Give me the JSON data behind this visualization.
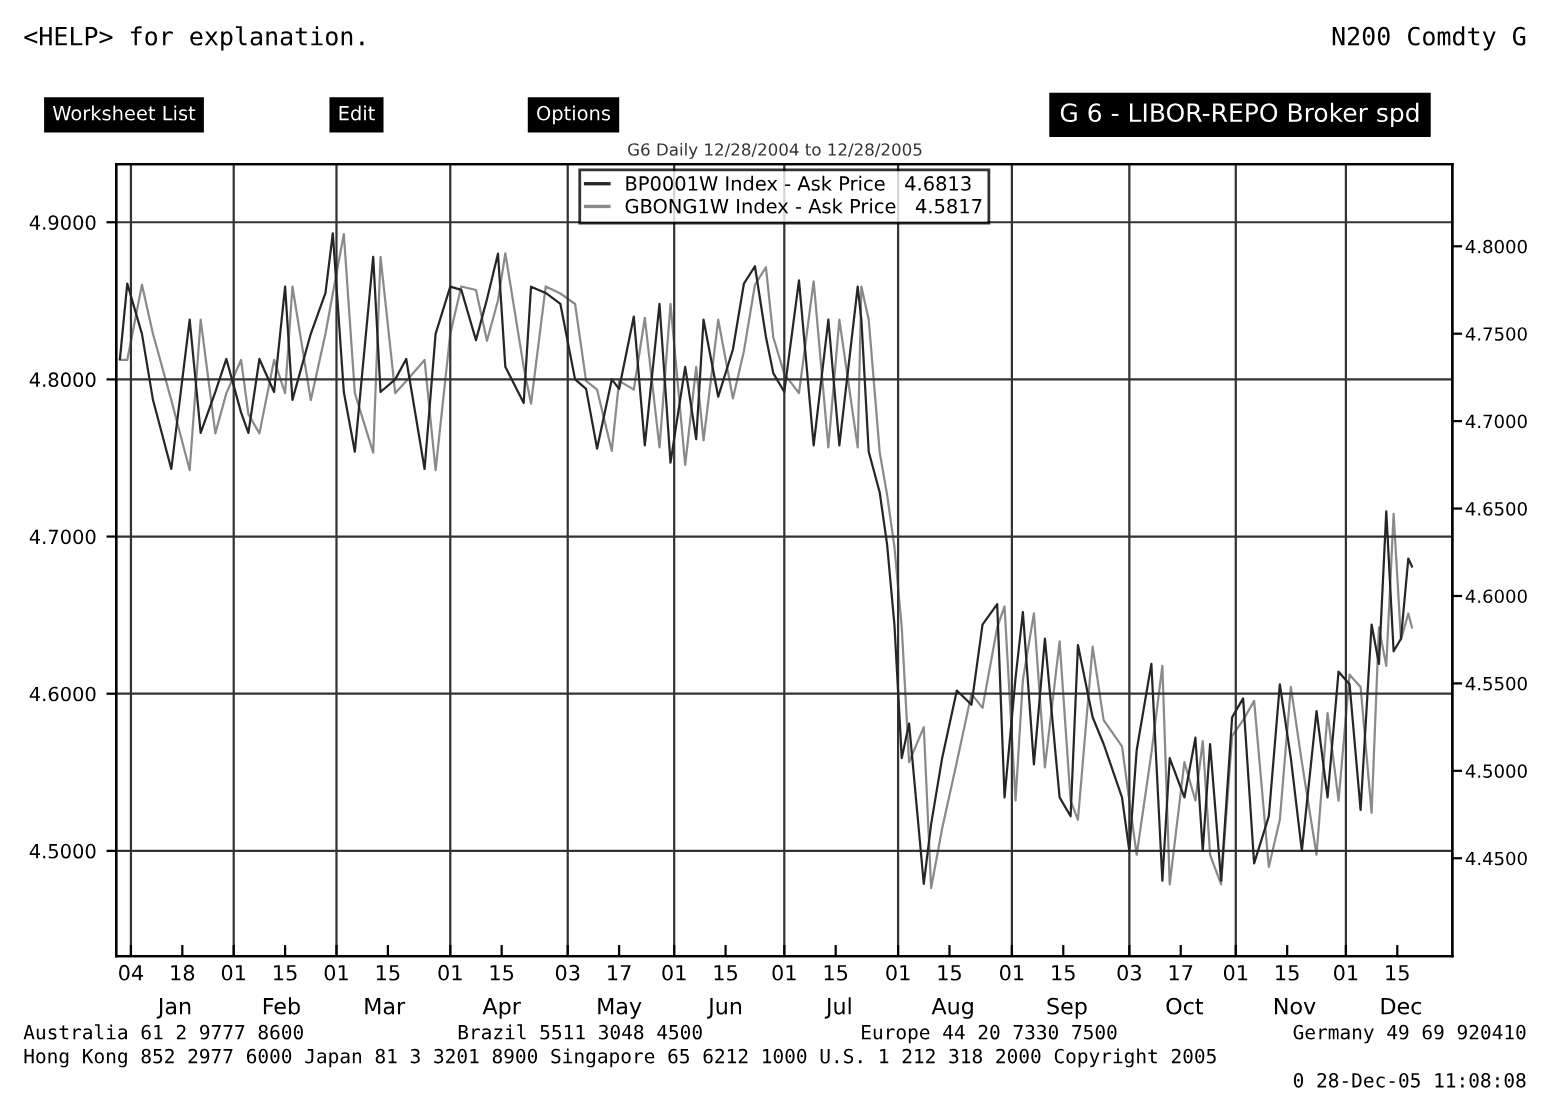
{
  "chart_data": {
    "type": "line",
    "title": "G 6 - LIBOR-REPO Broker spd",
    "subtitle": "G6 Daily 12/28/2004 to 12/28/2005",
    "annotations": [
      "<HELP> for explanation.",
      "N200 Comdty G",
      "Worksheet List",
      "Edit",
      "Options",
      "Australia 61 2 9777 8600",
      "Brazil 5511 3048 4500",
      "Europe 44 20 7330 7500",
      "Germany 49 69 920410",
      "Hong Kong 852 2977 6000 Japan 81 3 3201 8900 Singapore 65 6212 1000 U.S. 1 212 318 2000 Copyright 2005",
      "0 28-Dec-05 11:08:08"
    ],
    "x": [
      "2005-01-01",
      "2005-01-03",
      "2005-01-07",
      "2005-01-10",
      "2005-01-15",
      "2005-01-20",
      "2005-01-23",
      "2005-01-27",
      "2005-01-30",
      "2005-02-03",
      "2005-02-05",
      "2005-02-08",
      "2005-02-12",
      "2005-02-15",
      "2005-02-17",
      "2005-02-22",
      "2005-02-26",
      "2005-02-28",
      "2005-03-03",
      "2005-03-06",
      "2005-03-11",
      "2005-03-13",
      "2005-03-17",
      "2005-03-20",
      "2005-03-25",
      "2005-03-28",
      "2005-04-01",
      "2005-04-04",
      "2005-04-08",
      "2005-04-11",
      "2005-04-14",
      "2005-04-16",
      "2005-04-21",
      "2005-04-23",
      "2005-04-27",
      "2005-05-01",
      "2005-05-05",
      "2005-05-08",
      "2005-05-11",
      "2005-05-15",
      "2005-05-17",
      "2005-05-21",
      "2005-05-24",
      "2005-05-28",
      "2005-05-31",
      "2005-06-04",
      "2005-06-07",
      "2005-06-09",
      "2005-06-13",
      "2005-06-17",
      "2005-06-20",
      "2005-06-23",
      "2005-06-26",
      "2005-06-28",
      "2005-07-01",
      "2005-07-05",
      "2005-07-09",
      "2005-07-13",
      "2005-07-16",
      "2005-07-21",
      "2005-07-22",
      "2005-07-24",
      "2005-07-27",
      "2005-07-29",
      "2005-07-31",
      "2005-08-02",
      "2005-08-04",
      "2005-08-08",
      "2005-08-10",
      "2005-08-13",
      "2005-08-17",
      "2005-08-21",
      "2005-08-24",
      "2005-08-28",
      "2005-08-30",
      "2005-09-02",
      "2005-09-04",
      "2005-09-07",
      "2005-09-10",
      "2005-09-14",
      "2005-09-17",
      "2005-09-19",
      "2005-09-23",
      "2005-09-26",
      "2005-10-01",
      "2005-10-03",
      "2005-10-05",
      "2005-10-09",
      "2005-10-12",
      "2005-10-14",
      "2005-10-18",
      "2005-10-21",
      "2005-10-23",
      "2005-10-25",
      "2005-10-28",
      "2005-10-31",
      "2005-11-03",
      "2005-11-06",
      "2005-11-10",
      "2005-11-13",
      "2005-11-16",
      "2005-11-19",
      "2005-11-23",
      "2005-11-26",
      "2005-11-29",
      "2005-12-02",
      "2005-12-05",
      "2005-12-08",
      "2005-12-10",
      "2005-12-12",
      "2005-12-14",
      "2005-12-16",
      "2005-12-18",
      "2005-12-19"
    ],
    "series": [
      {
        "name": "BP0001W Index - Ask Price   4.6813",
        "color": "#262626",
        "values": [
          4.813,
          4.861,
          4.829,
          4.787,
          4.743,
          4.838,
          4.766,
          4.792,
          4.813,
          4.779,
          4.766,
          4.813,
          4.792,
          4.859,
          4.787,
          4.829,
          4.855,
          4.893,
          4.792,
          4.754,
          4.878,
          4.792,
          4.8,
          4.813,
          4.743,
          4.829,
          4.859,
          4.857,
          4.825,
          4.851,
          4.88,
          4.808,
          4.785,
          4.859,
          4.855,
          4.848,
          4.8,
          4.794,
          4.756,
          4.8,
          4.794,
          4.84,
          4.758,
          4.848,
          4.747,
          4.808,
          4.762,
          4.838,
          4.789,
          4.819,
          4.861,
          4.872,
          4.827,
          4.804,
          4.792,
          4.863,
          4.758,
          4.838,
          4.758,
          4.859,
          4.838,
          4.754,
          4.728,
          4.695,
          4.644,
          4.559,
          4.581,
          4.479,
          4.517,
          4.559,
          4.602,
          4.593,
          4.644,
          4.657,
          4.534,
          4.61,
          4.652,
          4.555,
          4.635,
          4.534,
          4.522,
          4.631,
          4.585,
          4.568,
          4.534,
          4.5,
          4.564,
          4.619,
          4.481,
          4.559,
          4.534,
          4.572,
          4.5,
          4.568,
          4.481,
          4.585,
          4.597,
          4.492,
          4.522,
          4.606,
          4.559,
          4.5,
          4.589,
          4.534,
          4.614,
          4.606,
          4.526,
          4.644,
          4.619,
          4.716,
          4.627,
          4.635,
          4.686,
          4.681
        ]
      },
      {
        "name": "GBONG1W Index - Ask Price   4.5817",
        "color": "#8a8a8a",
        "axis": "y2",
        "values": [
          4.735,
          4.735,
          4.778,
          4.75,
          4.712,
          4.672,
          4.758,
          4.693,
          4.716,
          4.735,
          4.704,
          4.693,
          4.735,
          4.716,
          4.777,
          4.712,
          4.75,
          4.773,
          4.807,
          4.716,
          4.682,
          4.794,
          4.716,
          4.723,
          4.735,
          4.672,
          4.75,
          4.777,
          4.775,
          4.746,
          4.769,
          4.796,
          4.731,
          4.71,
          4.777,
          4.773,
          4.767,
          4.723,
          4.718,
          4.683,
          4.723,
          4.718,
          4.759,
          4.685,
          4.767,
          4.675,
          4.731,
          4.689,
          4.758,
          4.713,
          4.74,
          4.778,
          4.788,
          4.748,
          4.727,
          4.716,
          4.78,
          4.685,
          4.758,
          4.685,
          4.777,
          4.758,
          4.682,
          4.658,
          4.628,
          4.582,
          4.505,
          4.525,
          4.433,
          4.467,
          4.505,
          4.544,
          4.536,
          4.582,
          4.594,
          4.483,
          4.552,
          4.59,
          4.502,
          4.574,
          4.483,
          4.472,
          4.571,
          4.529,
          4.514,
          4.483,
          4.452,
          4.51,
          4.56,
          4.435,
          4.505,
          4.483,
          4.517,
          4.452,
          4.435,
          4.52,
          4.529,
          4.54,
          4.445,
          4.472,
          4.548,
          4.505,
          4.452,
          4.533,
          4.483,
          4.555,
          4.548,
          4.476,
          4.582,
          4.56,
          4.647,
          4.575,
          4.59,
          4.582
        ]
      }
    ],
    "xlim": [
      "2004-12-31",
      "2005-12-30"
    ],
    "xticks": [
      {
        "value": "2005-01-04",
        "label": "04"
      },
      {
        "value": "2005-01-18",
        "label": "18"
      },
      {
        "value": "2005-02-01",
        "label": "01"
      },
      {
        "value": "2005-02-15",
        "label": "15"
      },
      {
        "value": "2005-03-01",
        "label": "01"
      },
      {
        "value": "2005-03-15",
        "label": "15"
      },
      {
        "value": "2005-04-01",
        "label": "01"
      },
      {
        "value": "2005-04-15",
        "label": "15"
      },
      {
        "value": "2005-05-03",
        "label": "03"
      },
      {
        "value": "2005-05-17",
        "label": "17"
      },
      {
        "value": "2005-06-01",
        "label": "01"
      },
      {
        "value": "2005-06-15",
        "label": "15"
      },
      {
        "value": "2005-07-01",
        "label": "01"
      },
      {
        "value": "2005-07-15",
        "label": "15"
      },
      {
        "value": "2005-08-01",
        "label": "01"
      },
      {
        "value": "2005-08-15",
        "label": "15"
      },
      {
        "value": "2005-09-01",
        "label": "01"
      },
      {
        "value": "2005-09-15",
        "label": "15"
      },
      {
        "value": "2005-10-03",
        "label": "03"
      },
      {
        "value": "2005-10-17",
        "label": "17"
      },
      {
        "value": "2005-11-01",
        "label": "01"
      },
      {
        "value": "2005-11-15",
        "label": "15"
      },
      {
        "value": "2005-12-01",
        "label": "01"
      },
      {
        "value": "2005-12-15",
        "label": "15"
      }
    ],
    "x2lim": [
      "2004-12-31",
      "2005-12-30"
    ],
    "x2ticks": [
      {
        "value": "2005-01-16",
        "label": "Jan"
      },
      {
        "value": "2005-02-14",
        "label": "Feb"
      },
      {
        "value": "2005-03-14",
        "label": "Mar"
      },
      {
        "value": "2005-04-15",
        "label": "Apr"
      },
      {
        "value": "2005-05-17",
        "label": "May"
      },
      {
        "value": "2005-06-15",
        "label": "Jun"
      },
      {
        "value": "2005-07-16",
        "label": "Jul"
      },
      {
        "value": "2005-08-16",
        "label": "Aug"
      },
      {
        "value": "2005-09-16",
        "label": "Sep"
      },
      {
        "value": "2005-10-18",
        "label": "Oct"
      },
      {
        "value": "2005-11-17",
        "label": "Nov"
      },
      {
        "value": "2005-12-16",
        "label": "Dec"
      }
    ],
    "ylim": [
      4.433,
      4.937
    ],
    "yticks": [
      {
        "value": 4.5,
        "label": "4.5000"
      },
      {
        "value": 4.6,
        "label": "4.6000"
      },
      {
        "value": 4.7,
        "label": "4.7000"
      },
      {
        "value": 4.8,
        "label": "4.8000"
      },
      {
        "value": 4.9,
        "label": "4.9000"
      }
    ],
    "y2lim": [
      4.394,
      4.847
    ],
    "y2ticks": [
      {
        "value": 4.45,
        "label": "4.4500"
      },
      {
        "value": 4.5,
        "label": "4.5000"
      },
      {
        "value": 4.55,
        "label": "4.5500"
      },
      {
        "value": 4.6,
        "label": "4.6000"
      },
      {
        "value": 4.65,
        "label": "4.6500"
      },
      {
        "value": 4.7,
        "label": "4.7000"
      },
      {
        "value": 4.75,
        "label": "4.7500"
      },
      {
        "value": 4.8,
        "label": "4.8000"
      }
    ],
    "grid": true,
    "legend": "top",
    "marker": "none",
    "line_style": "solid"
  }
}
